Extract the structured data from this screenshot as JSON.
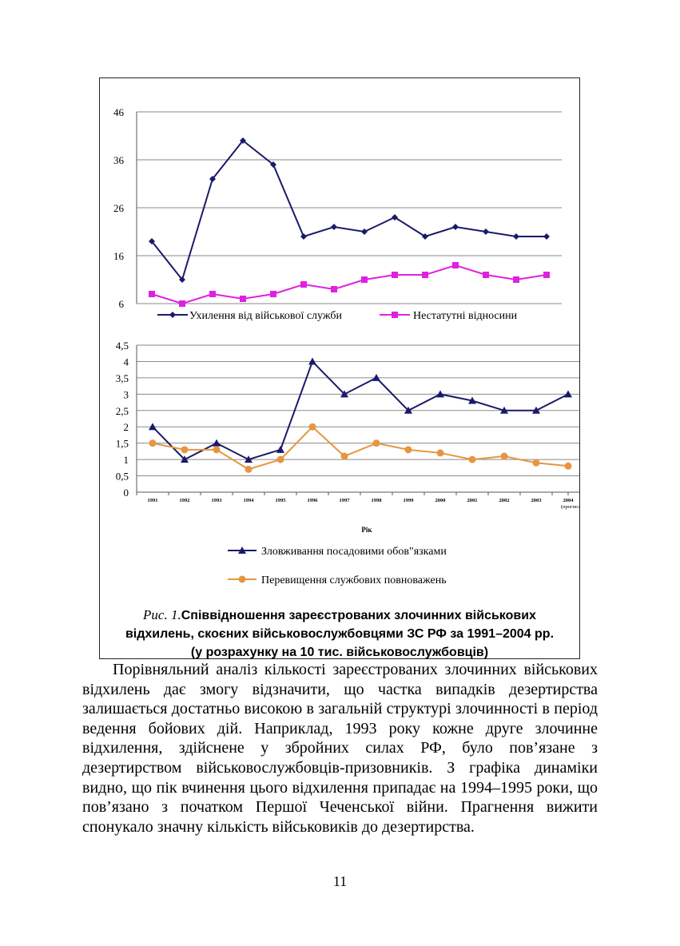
{
  "colors": {
    "navy": "#1a1a6b",
    "magenta": "#e020e0",
    "orange": "#e69640",
    "grid": "#8a8a8a"
  },
  "chart_data": [
    {
      "type": "line",
      "x": [
        "1991",
        "1992",
        "1993",
        "1994",
        "1995",
        "1996",
        "1997",
        "1998",
        "1999",
        "2000",
        "2001",
        "2002",
        "2003",
        "2004"
      ],
      "ylim": [
        6,
        46
      ],
      "yticks": [
        "6",
        "16",
        "26",
        "36",
        "46"
      ],
      "grid": true,
      "legend_position": "bottom",
      "series": [
        {
          "name": "Ухилення від військової служби",
          "marker": "diamond",
          "color": "#1a1a6b",
          "values": [
            19,
            11,
            32,
            40,
            35,
            20,
            22,
            21,
            24,
            20,
            22,
            21,
            20,
            20
          ]
        },
        {
          "name": "Нестатутні відносини",
          "marker": "square",
          "color": "#e020e0",
          "values": [
            8,
            6,
            8,
            7,
            8,
            10,
            9,
            11,
            12,
            12,
            14,
            12,
            11,
            12
          ]
        }
      ]
    },
    {
      "type": "line",
      "x": [
        "1991",
        "1992",
        "1993",
        "1994",
        "1995",
        "1996",
        "1997",
        "1998",
        "1999",
        "2000",
        "2001",
        "2002",
        "2003",
        "2004"
      ],
      "x_tick_labels": [
        "1991",
        "1992",
        "1993",
        "1994",
        "1995",
        "1996",
        "1997",
        "1998",
        "1999",
        "2000",
        "2001",
        "2002",
        "2003",
        "2004"
      ],
      "x_tick_note": "(прогноз)",
      "xlabel": "Рік",
      "ylim": [
        0,
        4.5
      ],
      "yticks": [
        "0",
        "0,5",
        "1",
        "1,5",
        "2",
        "2,5",
        "3",
        "3,5",
        "4",
        "4,5"
      ],
      "grid": true,
      "legend_position": "bottom",
      "series": [
        {
          "name": "Зловживання посадовими обов\"язками",
          "marker": "triangle",
          "color": "#1a1a6b",
          "values": [
            2,
            1,
            1.5,
            1,
            1.3,
            4,
            3,
            3.5,
            2.5,
            3,
            2.8,
            2.5,
            2.5,
            3
          ]
        },
        {
          "name": "Перевищення службових повноважень",
          "marker": "circle",
          "color": "#e69640",
          "values": [
            1.5,
            1.3,
            1.3,
            0.7,
            1,
            2,
            1.1,
            1.5,
            1.3,
            1.2,
            1,
            1.1,
            0.9,
            0.8
          ]
        }
      ]
    }
  ],
  "caption": {
    "prefix": "Рис. 1.",
    "line1": "Співвідношення зареєстрованих злочинних військових",
    "line2": "відхилень, скоєних військовослужбовцями ЗС РФ за 1991–2004 рр.",
    "line3": "(у розрахунку на 10 тис. військовослужбовців)"
  },
  "body_text": "Порівняльний аналіз кількості зареєстрованих злочинних військових відхилень дає змогу відзначити, що частка випадків дезертирства залишається достатньо високою в загальній структурі злочинності в період ведення бойових дій. Наприклад, 1993 року кожне друге злочинне відхилення, здійснене у збройних силах РФ, було пов’язане з дезертирством військовослужбовців-призовників. З графіка динаміки видно, що пік вчинення цього відхилення припадає на 1994–1995 роки, що пов’язано з початком Першої Чеченської війни. Прагнення вижити спонукало значну кількість військовиків до дезертирства.",
  "page_number": "11"
}
